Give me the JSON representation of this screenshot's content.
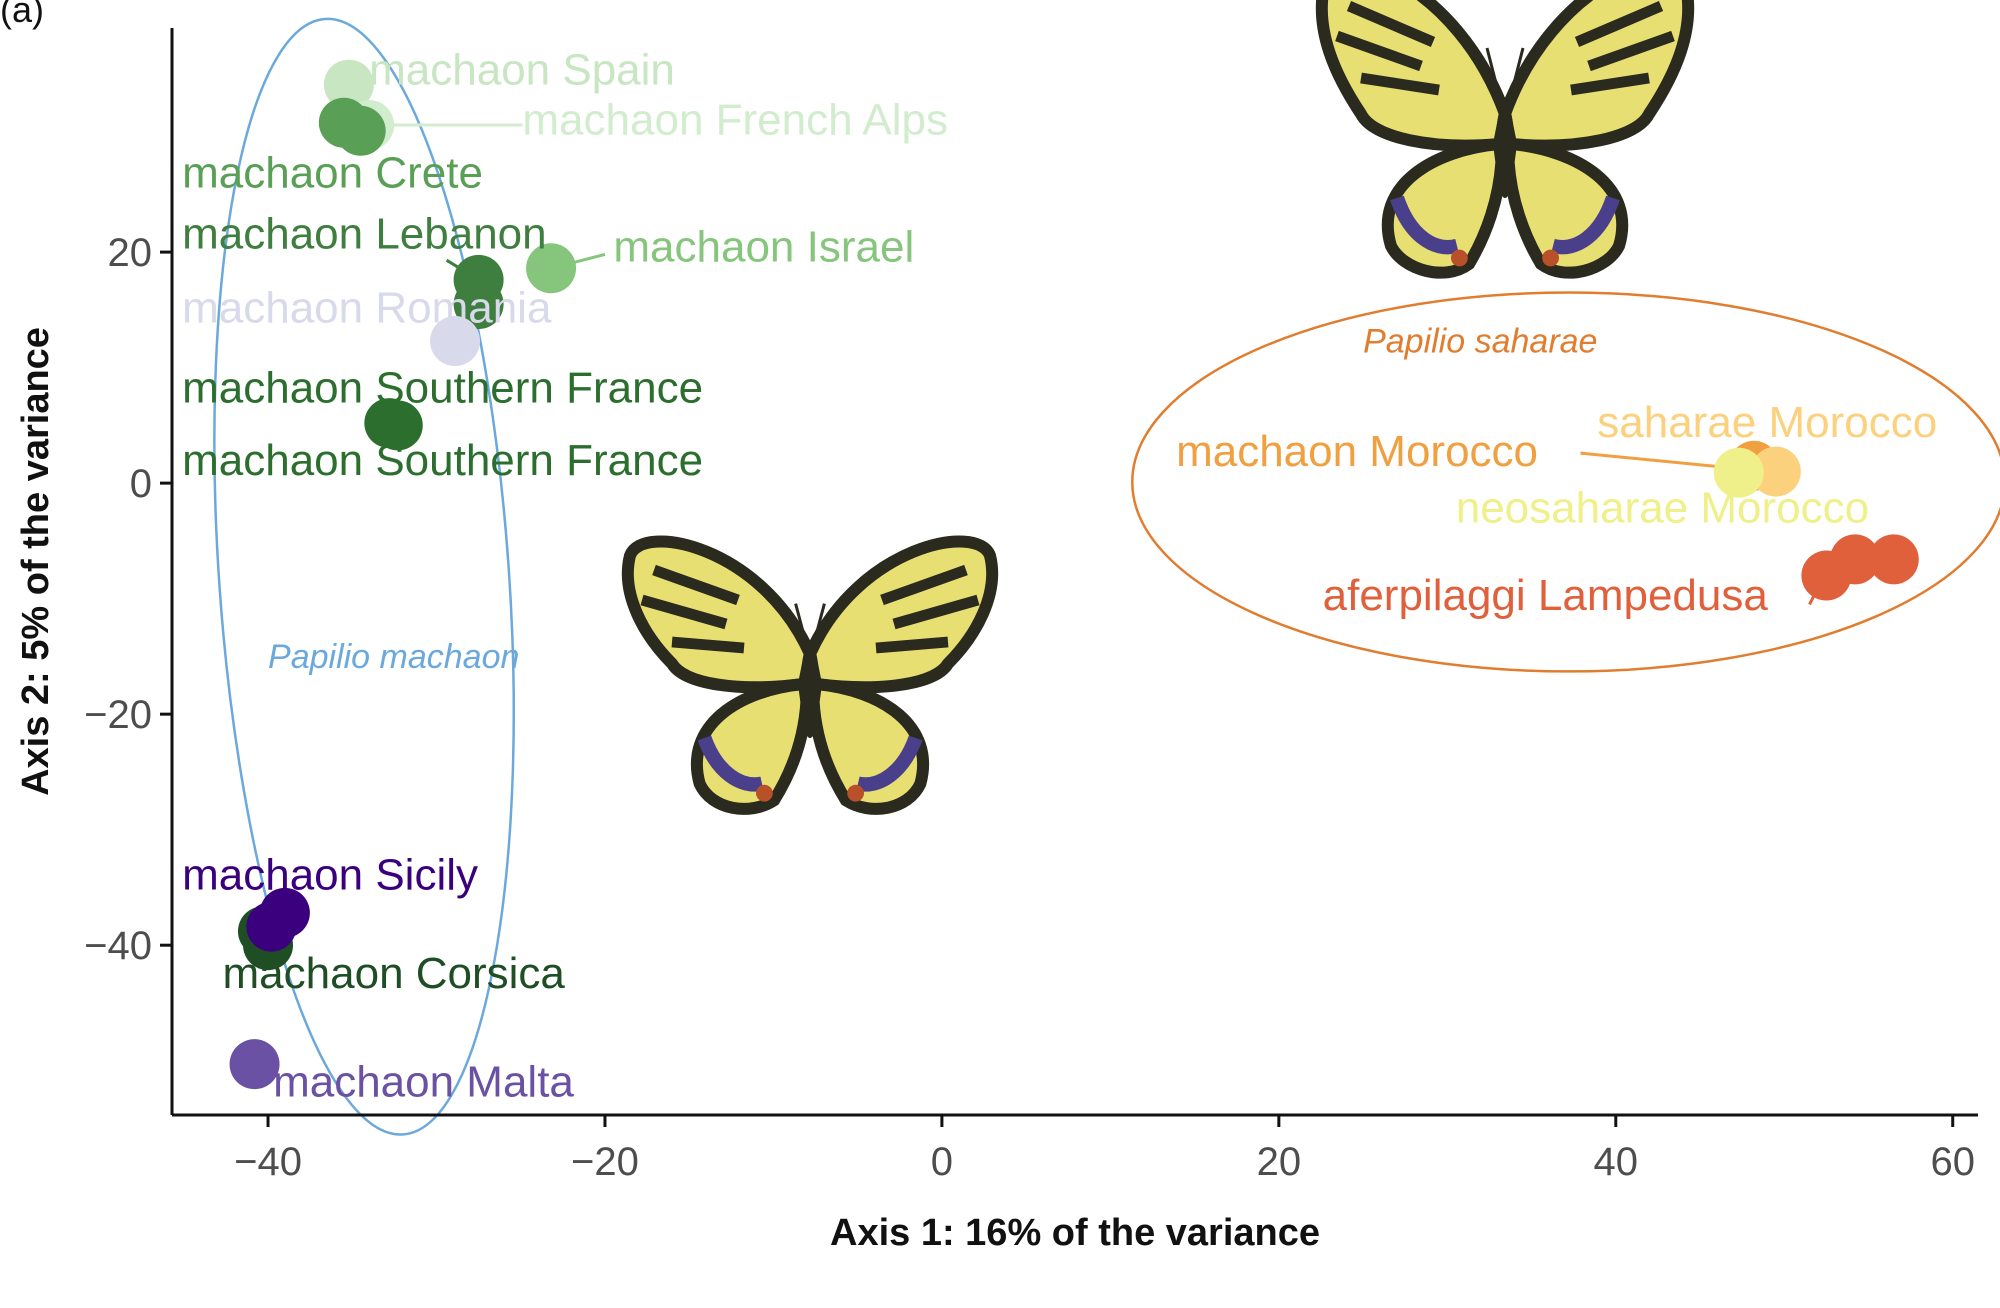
{
  "panel_label": "(a)",
  "chart_data": {
    "type": "scatter",
    "title": "",
    "xlabel": "Axis 1: 16% of the variance",
    "ylabel": "Axis 2: 5% of the variance",
    "xlim": [
      -45.7,
      61.5
    ],
    "ylim": [
      -54.7,
      39.4
    ],
    "xticks": [
      -40,
      -20,
      0,
      20,
      40,
      60
    ],
    "yticks": [
      -40,
      -20,
      0,
      20
    ],
    "xtick_labels": [
      "−40",
      "−20",
      "0",
      "20",
      "40",
      "60"
    ],
    "ytick_labels": [
      "−40",
      "−20",
      "0",
      "20"
    ],
    "grid": false,
    "points": [
      {
        "name": "Spain",
        "color": "#c7e6c1",
        "xy": [
          [
            -35.2,
            34.5
          ]
        ]
      },
      {
        "name": "French Alps",
        "color": "#d2ecce",
        "xy": [
          [
            -34.0,
            31.0
          ]
        ]
      },
      {
        "name": "Crete",
        "color": "#5a9f56",
        "xy": [
          [
            -35.5,
            31.2
          ],
          [
            -34.5,
            30.5
          ]
        ]
      },
      {
        "name": "Lebanon",
        "color": "#3e7e3e",
        "xy": [
          [
            -27.5,
            17.6
          ],
          [
            -27.5,
            15.5
          ]
        ]
      },
      {
        "name": "Israel",
        "color": "#86c57c",
        "xy": [
          [
            -23.2,
            18.6
          ]
        ]
      },
      {
        "name": "Romania",
        "color": "#d9d9ec",
        "xy": [
          [
            -28.9,
            12.3
          ]
        ]
      },
      {
        "name": "Southern France A",
        "color": "#2c6e2e",
        "xy": [
          [
            -32.8,
            5.2
          ]
        ]
      },
      {
        "name": "Southern France B",
        "color": "#2c6e2e",
        "xy": [
          [
            -32.3,
            5.0
          ]
        ]
      },
      {
        "name": "Corsica",
        "color": "#1f4e24",
        "xy": [
          [
            -40.3,
            -38.8
          ],
          [
            -40.0,
            -40.0
          ]
        ]
      },
      {
        "name": "Sicily",
        "color": "#3a007d",
        "xy": [
          [
            -39.0,
            -37.2
          ],
          [
            -39.8,
            -38.4
          ]
        ]
      },
      {
        "name": "Malta",
        "color": "#6a51a3",
        "xy": [
          [
            -40.8,
            -50.3
          ]
        ]
      },
      {
        "name": "machaon Morocco",
        "color": "#f0a040",
        "xy": [
          [
            48.2,
            1.5
          ]
        ]
      },
      {
        "name": "saharae Morocco",
        "color": "#fbd17e",
        "xy": [
          [
            49.5,
            1.0
          ]
        ]
      },
      {
        "name": "neosaharae Morocco",
        "color": "#f0f08a",
        "xy": [
          [
            47.3,
            0.9
          ]
        ]
      },
      {
        "name": "aferpilaggi Lampedusa",
        "color": "#e0603c",
        "xy": [
          [
            52.5,
            -8.0
          ],
          [
            54.2,
            -6.6
          ],
          [
            56.5,
            -6.6
          ]
        ]
      }
    ],
    "labels": [
      {
        "text": "machaon Spain",
        "color": "#c7e6c1",
        "at": [
          -34.0,
          34.5
        ],
        "leader": null
      },
      {
        "text": "machaon French Alps",
        "color": "#d2ecce",
        "at": [
          -24.9,
          30.2
        ],
        "leader": [
          [
            -34.0,
            31.0
          ],
          [
            -24.9,
            31.0
          ]
        ]
      },
      {
        "text": "machaon Crete",
        "color": "#5a9f56",
        "at": [
          -45.1,
          25.6
        ],
        "leader": null
      },
      {
        "text": "machaon Lebanon",
        "color": "#3e7e3e",
        "at": [
          -45.1,
          20.3
        ],
        "leader": [
          [
            -29.4,
            19.3
          ],
          [
            -27.5,
            17.6
          ]
        ]
      },
      {
        "text": "machaon Israel",
        "color": "#86c57c",
        "at": [
          -19.5,
          19.2
        ],
        "leader": [
          [
            -23.2,
            18.6
          ],
          [
            -20.0,
            19.8
          ]
        ]
      },
      {
        "text": "machaon Romania",
        "color": "#d9d9ec",
        "at": [
          -45.1,
          13.9
        ],
        "leader": null
      },
      {
        "text": "machaon Southern France",
        "color": "#2c6e2e",
        "at": [
          -45.1,
          7.0
        ],
        "leader": null
      },
      {
        "text": "machaon Southern France",
        "color": "#2c6e2e",
        "at": [
          -45.1,
          0.7
        ],
        "leader": null
      },
      {
        "text": "machaon Sicily",
        "color": "#3a007d",
        "at": [
          -45.1,
          -35.2
        ],
        "leader": null
      },
      {
        "text": "machaon Corsica",
        "color": "#1f4e24",
        "at": [
          -42.7,
          -43.7
        ],
        "leader": [
          [
            -40.0,
            -39.5
          ],
          [
            -38.8,
            -40.8
          ]
        ]
      },
      {
        "text": "machaon Malta",
        "color": "#6a51a3",
        "at": [
          -39.7,
          -53.1
        ],
        "leader": null
      },
      {
        "text": "machaon Morocco",
        "color": "#f0a040",
        "at": [
          13.9,
          1.5
        ],
        "leader": [
          [
            37.9,
            2.6
          ],
          [
            47.0,
            1.3
          ]
        ]
      },
      {
        "text": "saharae Morocco",
        "color": "#fbd17e",
        "at": [
          38.9,
          4.0
        ],
        "leader": null
      },
      {
        "text": "neosaharae Morocco",
        "color": "#f0f08a",
        "at": [
          30.5,
          -3.4
        ],
        "leader": null
      },
      {
        "text": "aferpilaggi Lampedusa",
        "color": "#e0603c",
        "at": [
          22.6,
          -11.0
        ],
        "leader": [
          [
            51.5,
            -10.5
          ],
          [
            52.3,
            -8.2
          ]
        ]
      }
    ],
    "groups": [
      {
        "label": "Papilio machaon",
        "color": "#6ba9dc",
        "label_at": [
          -40.0,
          -16.0
        ],
        "center": [
          -34.3,
          -8.1
        ],
        "radii": [
          8.6,
          48.4
        ],
        "angle_deg": -4.0
      },
      {
        "label": "Papilio saharae",
        "color": "#e07d2f",
        "label_at": [
          25.0,
          11.3
        ],
        "center": [
          37.2,
          0.1
        ],
        "radii": [
          25.9,
          16.4
        ],
        "angle_deg": 0
      }
    ]
  }
}
